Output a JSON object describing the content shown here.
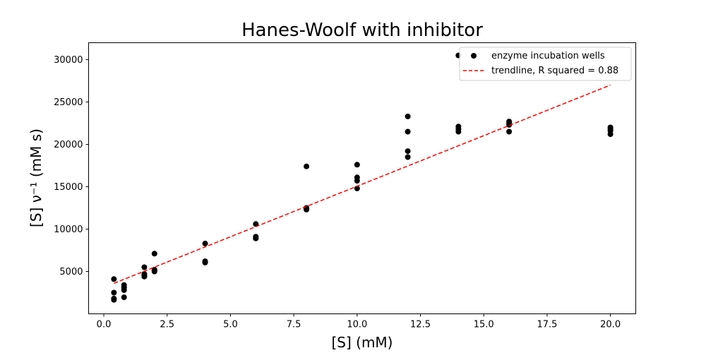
{
  "chart_data": {
    "type": "scatter",
    "title": "Hanes-Woolf with inhibitor",
    "xlabel": "[S] (mM)",
    "ylabel": "[S] ν⁻¹ (mM s)",
    "xlim": [
      -0.6,
      21.0
    ],
    "ylim": [
      0,
      32000
    ],
    "x_ticks": [
      0.0,
      2.5,
      5.0,
      7.5,
      10.0,
      12.5,
      15.0,
      17.5,
      20.0
    ],
    "x_tick_labels": [
      "0.0",
      "2.5",
      "5.0",
      "7.5",
      "10.0",
      "12.5",
      "15.0",
      "17.5",
      "20.0"
    ],
    "y_ticks": [
      5000,
      10000,
      15000,
      20000,
      25000,
      30000
    ],
    "y_tick_labels": [
      "5000",
      "10000",
      "15000",
      "20000",
      "25000",
      "30000"
    ],
    "grid": false,
    "legend_position": "top-right",
    "series": [
      {
        "name": "enzyme incubation wells",
        "kind": "scatter",
        "color": "#000000",
        "points": [
          [
            0.4,
            4100
          ],
          [
            0.4,
            2500
          ],
          [
            0.4,
            1800
          ],
          [
            0.4,
            1650
          ],
          [
            0.8,
            3400
          ],
          [
            0.8,
            3100
          ],
          [
            0.8,
            2800
          ],
          [
            0.8,
            1950
          ],
          [
            1.6,
            5500
          ],
          [
            1.6,
            4700
          ],
          [
            1.6,
            4500
          ],
          [
            1.6,
            4400
          ],
          [
            2.0,
            7100
          ],
          [
            2.0,
            5200
          ],
          [
            2.0,
            5100
          ],
          [
            2.0,
            5000
          ],
          [
            4.0,
            8300
          ],
          [
            4.0,
            6200
          ],
          [
            4.0,
            6100
          ],
          [
            4.0,
            6050
          ],
          [
            6.0,
            10600
          ],
          [
            6.0,
            9100
          ],
          [
            6.0,
            8950
          ],
          [
            6.0,
            8900
          ],
          [
            8.0,
            17400
          ],
          [
            8.0,
            12500
          ],
          [
            8.0,
            12400
          ],
          [
            8.0,
            12300
          ],
          [
            10.0,
            17600
          ],
          [
            10.0,
            16100
          ],
          [
            10.0,
            15700
          ],
          [
            10.0,
            14800
          ],
          [
            12.0,
            23300
          ],
          [
            12.0,
            21500
          ],
          [
            12.0,
            19200
          ],
          [
            12.0,
            18500
          ],
          [
            14.0,
            30500
          ],
          [
            14.0,
            22100
          ],
          [
            14.0,
            21800
          ],
          [
            14.0,
            21500
          ],
          [
            16.0,
            22700
          ],
          [
            16.0,
            22500
          ],
          [
            16.0,
            22300
          ],
          [
            16.0,
            21500
          ],
          [
            20.0,
            22000
          ],
          [
            20.0,
            21800
          ],
          [
            20.0,
            21600
          ],
          [
            20.0,
            21200
          ]
        ]
      },
      {
        "name": "trendline, R squared = 0.88",
        "kind": "line",
        "style": "dashed",
        "color": "#ff0000",
        "points": [
          [
            0.4,
            3600
          ],
          [
            20.0,
            27000
          ]
        ]
      }
    ]
  }
}
